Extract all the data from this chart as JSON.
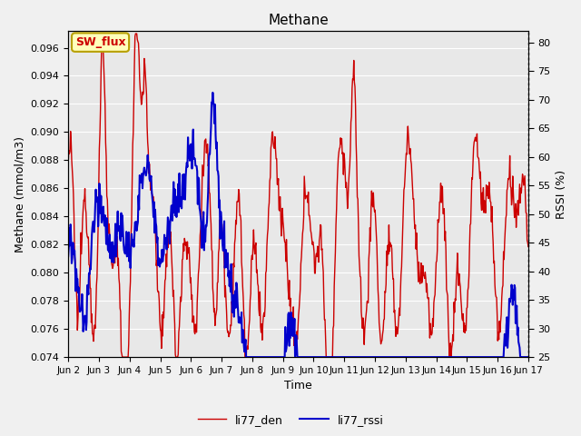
{
  "title": "Methane",
  "xlabel": "Time",
  "ylabel_left": "Methane (mmol/m3)",
  "ylabel_right": "RSSI (%)",
  "ylim_left": [
    0.074,
    0.0972
  ],
  "ylim_right": [
    25,
    82
  ],
  "yticks_left": [
    0.074,
    0.076,
    0.078,
    0.08,
    0.082,
    0.084,
    0.086,
    0.088,
    0.09,
    0.092,
    0.094,
    0.096
  ],
  "yticks_right": [
    25,
    30,
    35,
    40,
    45,
    50,
    55,
    60,
    65,
    70,
    75,
    80
  ],
  "xtick_labels": [
    "Jun 2",
    "Jun 3",
    "Jun 4",
    "Jun 5",
    "Jun 6",
    "Jun 7",
    "Jun 8",
    "Jun 9",
    "Jun 10",
    "Jun 11",
    "Jun 12",
    "Jun 13",
    "Jun 14",
    "Jun 15",
    "Jun 16",
    "Jun 17"
  ],
  "plot_bg_color": "#e8e8e8",
  "fig_bg_color": "#f0f0f0",
  "line_color_den": "#cc0000",
  "line_color_rssi": "#0000cc",
  "legend_label_den": "li77_den",
  "legend_label_rssi": "li77_rssi",
  "annotation_text": "SW_flux",
  "annotation_bg": "#ffffbb",
  "annotation_border": "#b8a000"
}
